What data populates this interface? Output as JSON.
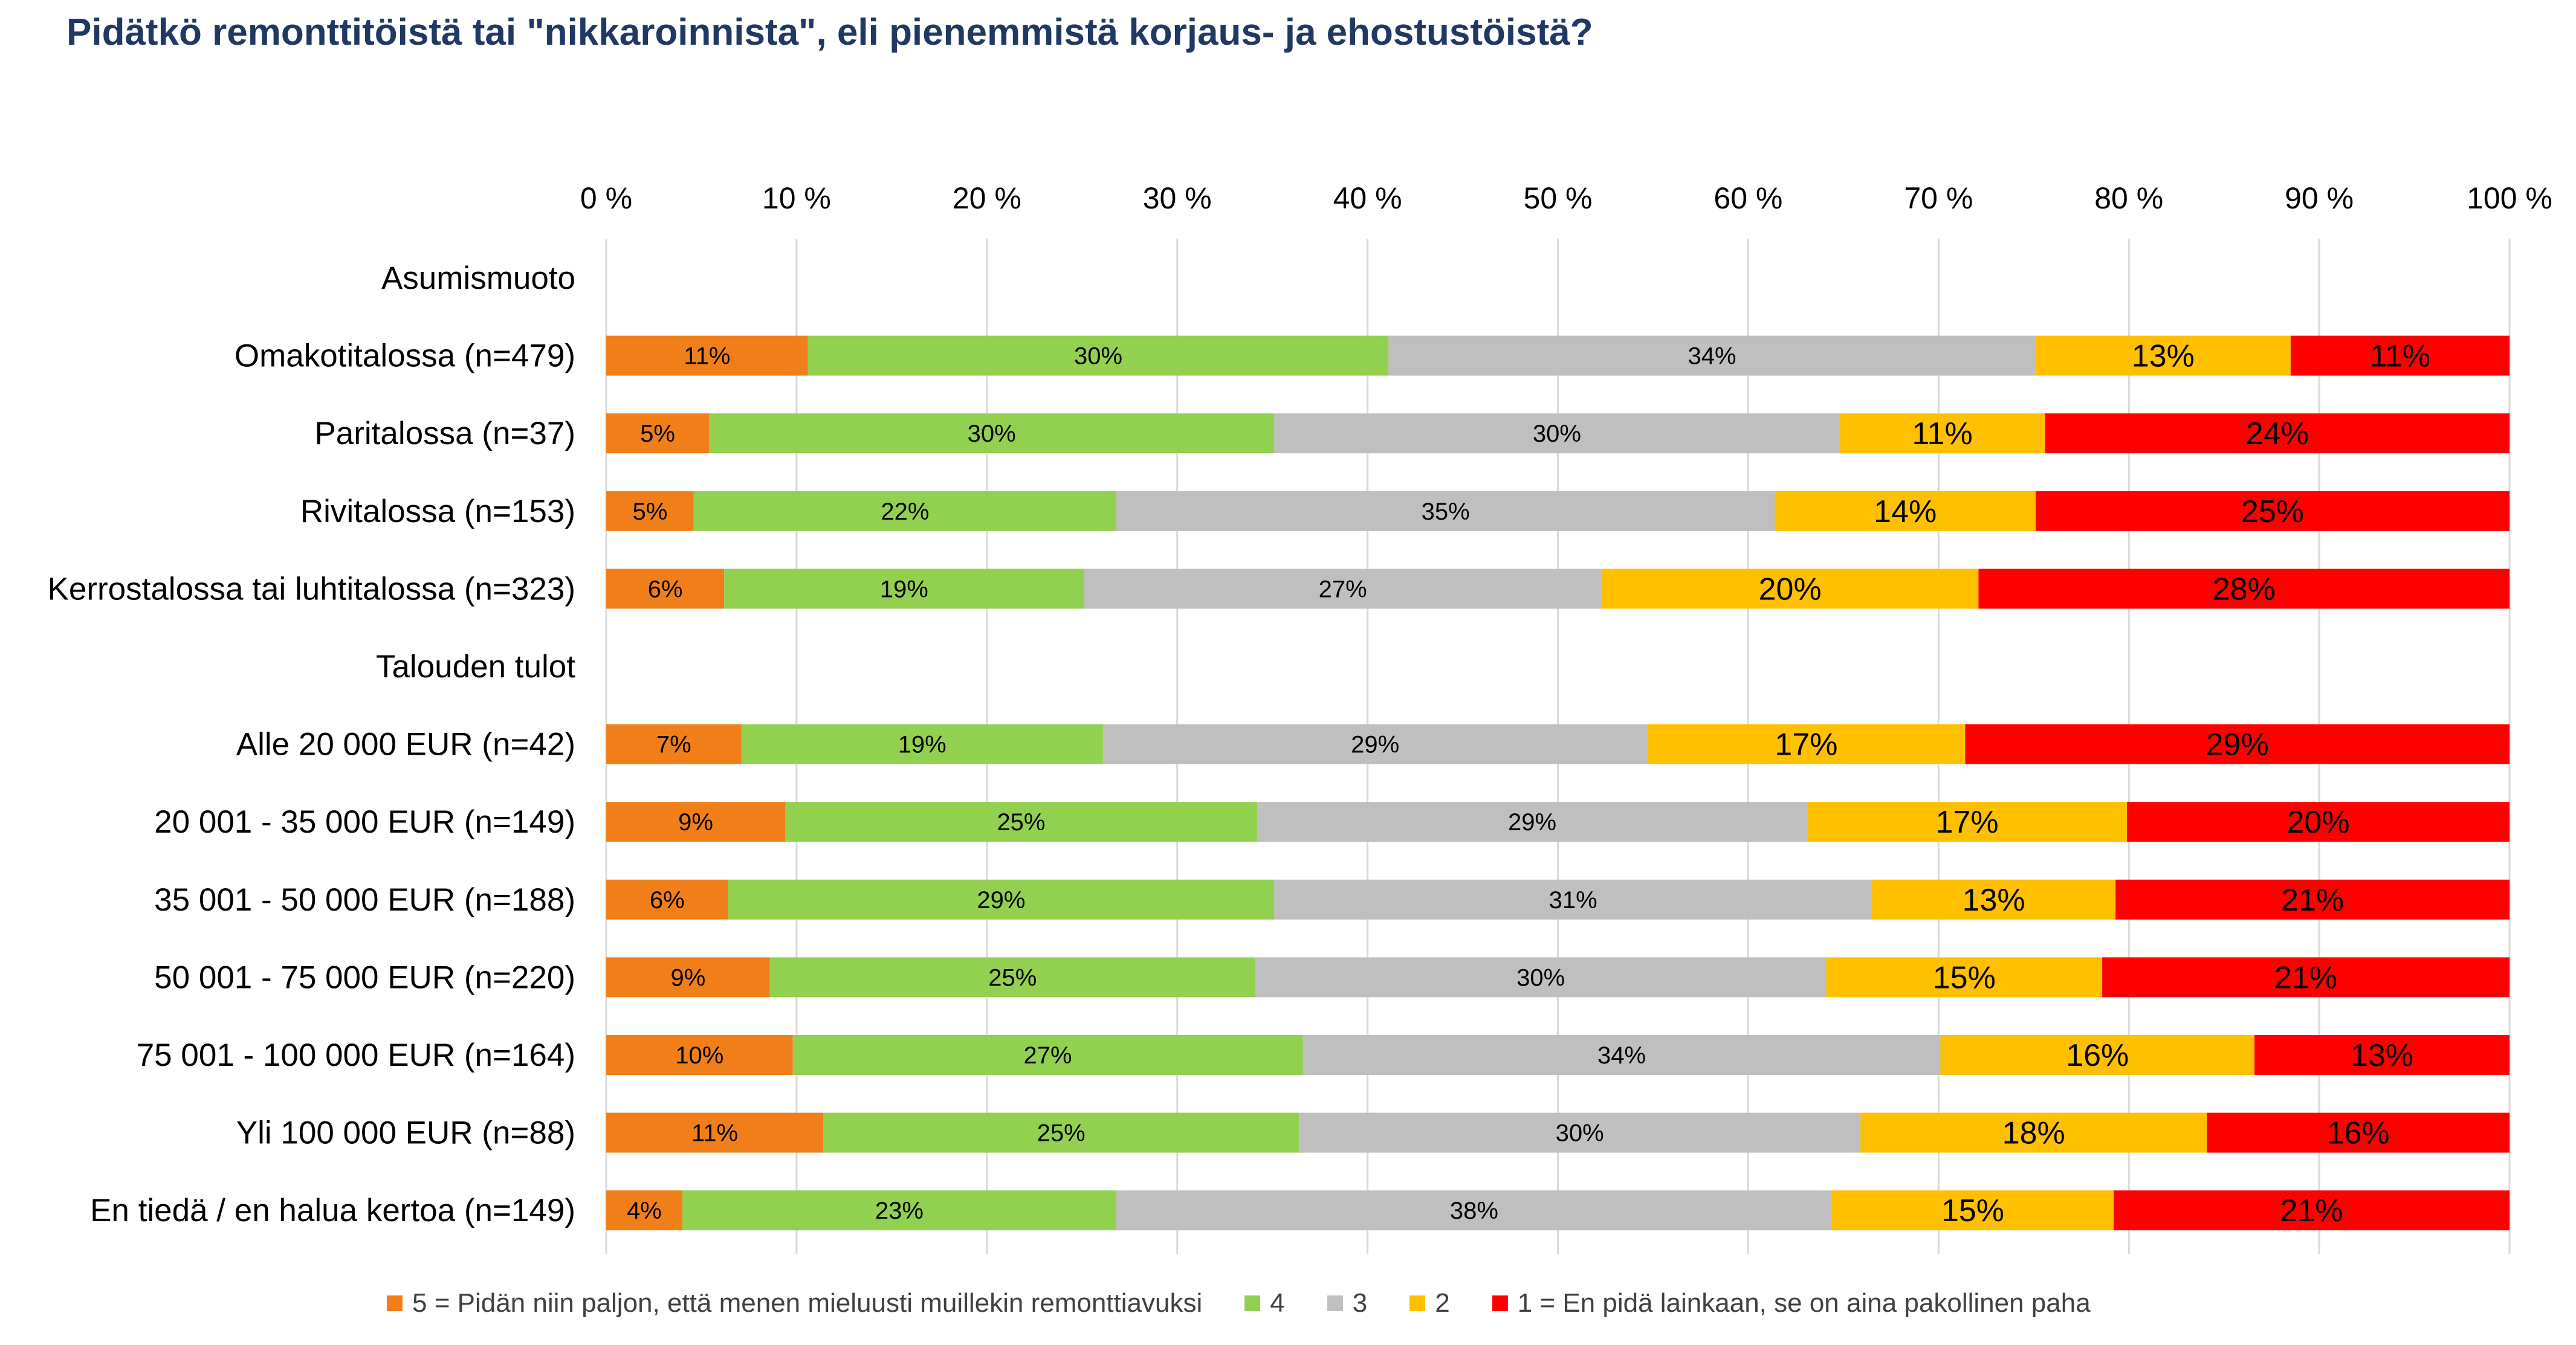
{
  "chart_data": {
    "type": "bar",
    "orientation": "horizontal",
    "stacked": true,
    "percent_stacked": true,
    "title": "Pidätkö remonttitöistä tai \"nikkaroinnista\", eli pienemmistä korjaus- ja ehostustöistä?",
    "xlim": [
      0,
      100
    ],
    "x_ticks": [
      "0 %",
      "10 %",
      "20 %",
      "30 %",
      "40 %",
      "50 %",
      "60 %",
      "70 %",
      "80 %",
      "90 %",
      "100 %"
    ],
    "grid": true,
    "legend_position": "bottom",
    "categories": [
      "Asumismuoto",
      "Omakotitalossa (n=479)",
      "Paritalossa (n=37)",
      "Rivitalossa (n=153)",
      "Kerrostalossa tai luhtitalossa (n=323)",
      "Talouden tulot",
      "Alle 20 000 EUR (n=42)",
      "20 001 - 35 000 EUR (n=149)",
      "35 001 - 50 000 EUR (n=188)",
      "50 001 - 75 000 EUR (n=220)",
      "75 001 - 100 000 EUR (n=164)",
      "Yli 100 000 EUR (n=88)",
      "En tiedä / en halua kertoa (n=149)"
    ],
    "series": [
      {
        "name": "5 = Pidän niin paljon, että menen mieluusti muillekin remonttiavuksi",
        "color": "#f07f1a",
        "values": [
          null,
          10.6,
          5.4,
          4.6,
          6.2,
          null,
          7.1,
          9.4,
          6.4,
          8.6,
          9.8,
          11.4,
          4.0
        ]
      },
      {
        "name": "4",
        "color": "#92d050",
        "values": [
          null,
          30.5,
          29.7,
          22.2,
          18.9,
          null,
          19.0,
          24.8,
          28.7,
          25.5,
          26.8,
          25.0,
          22.8
        ]
      },
      {
        "name": "3",
        "color": "#bfbfbf",
        "values": [
          null,
          34.0,
          29.7,
          34.6,
          27.2,
          null,
          28.6,
          28.9,
          31.4,
          30.0,
          33.5,
          29.5,
          37.6
        ]
      },
      {
        "name": "2",
        "color": "#ffc000",
        "values": [
          null,
          13.4,
          10.8,
          13.7,
          19.8,
          null,
          16.7,
          16.8,
          12.8,
          14.5,
          16.5,
          18.2,
          14.8
        ]
      },
      {
        "name": "1 = En pidä lainkaan, se on aina pakollinen paha",
        "color": "#ff0000",
        "values": [
          null,
          11.5,
          24.4,
          24.9,
          27.9,
          null,
          28.6,
          20.1,
          20.7,
          21.4,
          13.4,
          15.9,
          20.8
        ]
      }
    ],
    "value_labels": [
      [
        null,
        null,
        null,
        null,
        null
      ],
      [
        "11%",
        "30%",
        "34%",
        "13%",
        "11%"
      ],
      [
        "5%",
        "30%",
        "30%",
        "11%",
        "24%"
      ],
      [
        "5%",
        "22%",
        "35%",
        "14%",
        "25%"
      ],
      [
        "6%",
        "19%",
        "27%",
        "20%",
        "28%"
      ],
      [
        null,
        null,
        null,
        null,
        null
      ],
      [
        "7%",
        "19%",
        "29%",
        "17%",
        "29%"
      ],
      [
        "9%",
        "25%",
        "29%",
        "17%",
        "20%"
      ],
      [
        "6%",
        "29%",
        "31%",
        "13%",
        "21%"
      ],
      [
        "9%",
        "25%",
        "30%",
        "15%",
        "21%"
      ],
      [
        "10%",
        "27%",
        "34%",
        "16%",
        "13%"
      ],
      [
        "11%",
        "25%",
        "30%",
        "18%",
        "16%"
      ],
      [
        "4%",
        "23%",
        "38%",
        "15%",
        "21%"
      ]
    ]
  }
}
